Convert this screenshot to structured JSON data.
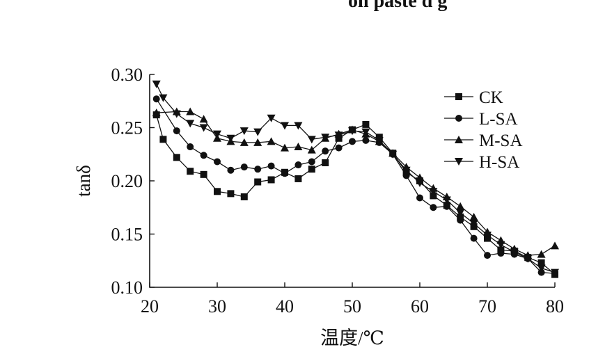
{
  "top_fragment": "on paste d g",
  "chart_data": {
    "type": "line",
    "title": "",
    "xlabel": "温度/℃",
    "ylabel": "tanδ",
    "xlim": [
      20,
      80
    ],
    "ylim": [
      0.1,
      0.3
    ],
    "xticks": [
      20,
      30,
      40,
      50,
      60,
      70,
      80
    ],
    "yticks": [
      0.1,
      0.15,
      0.2,
      0.25,
      0.3
    ],
    "xtick_labels": [
      "20",
      "30",
      "40",
      "50",
      "60",
      "70",
      "80"
    ],
    "ytick_labels": [
      "0.10",
      "0.15",
      "0.20",
      "0.25",
      "0.30"
    ],
    "grid": false,
    "legend_position": "top-right",
    "series": [
      {
        "name": "CK",
        "marker": "square",
        "points": [
          [
            21,
            0.262
          ],
          [
            22,
            0.239
          ],
          [
            24,
            0.222
          ],
          [
            26,
            0.209
          ],
          [
            28,
            0.206
          ],
          [
            30,
            0.19
          ],
          [
            32,
            0.188
          ],
          [
            34,
            0.185
          ],
          [
            36,
            0.199
          ],
          [
            38,
            0.201
          ],
          [
            40,
            0.208
          ],
          [
            42,
            0.202
          ],
          [
            44,
            0.211
          ],
          [
            46,
            0.217
          ],
          [
            48,
            0.24
          ],
          [
            50,
            0.248
          ],
          [
            52,
            0.253
          ],
          [
            54,
            0.241
          ],
          [
            56,
            0.226
          ],
          [
            58,
            0.208
          ],
          [
            60,
            0.2
          ],
          [
            62,
            0.186
          ],
          [
            64,
            0.177
          ],
          [
            66,
            0.166
          ],
          [
            68,
            0.157
          ],
          [
            70,
            0.146
          ],
          [
            72,
            0.135
          ],
          [
            74,
            0.134
          ],
          [
            76,
            0.128
          ],
          [
            78,
            0.123
          ],
          [
            80,
            0.112
          ]
        ]
      },
      {
        "name": "L-SA",
        "marker": "circle",
        "points": [
          [
            21,
            0.277
          ],
          [
            24,
            0.247
          ],
          [
            26,
            0.232
          ],
          [
            28,
            0.224
          ],
          [
            30,
            0.218
          ],
          [
            32,
            0.21
          ],
          [
            34,
            0.213
          ],
          [
            36,
            0.211
          ],
          [
            38,
            0.214
          ],
          [
            40,
            0.207
          ],
          [
            42,
            0.215
          ],
          [
            44,
            0.218
          ],
          [
            46,
            0.228
          ],
          [
            48,
            0.231
          ],
          [
            50,
            0.237
          ],
          [
            52,
            0.238
          ],
          [
            54,
            0.236
          ],
          [
            56,
            0.225
          ],
          [
            58,
            0.205
          ],
          [
            60,
            0.184
          ],
          [
            62,
            0.175
          ],
          [
            64,
            0.176
          ],
          [
            66,
            0.163
          ],
          [
            68,
            0.146
          ],
          [
            70,
            0.13
          ],
          [
            72,
            0.132
          ],
          [
            74,
            0.131
          ],
          [
            76,
            0.127
          ],
          [
            78,
            0.114
          ],
          [
            80,
            0.113
          ]
        ]
      },
      {
        "name": "M-SA",
        "marker": "triangle-up",
        "points": [
          [
            21,
            0.264
          ],
          [
            24,
            0.265
          ],
          [
            26,
            0.265
          ],
          [
            28,
            0.258
          ],
          [
            30,
            0.24
          ],
          [
            32,
            0.237
          ],
          [
            34,
            0.236
          ],
          [
            36,
            0.236
          ],
          [
            38,
            0.237
          ],
          [
            40,
            0.231
          ],
          [
            42,
            0.232
          ],
          [
            44,
            0.229
          ],
          [
            46,
            0.24
          ],
          [
            48,
            0.244
          ],
          [
            50,
            0.248
          ],
          [
            52,
            0.244
          ],
          [
            54,
            0.237
          ],
          [
            56,
            0.226
          ],
          [
            58,
            0.213
          ],
          [
            60,
            0.203
          ],
          [
            62,
            0.193
          ],
          [
            64,
            0.185
          ],
          [
            66,
            0.176
          ],
          [
            68,
            0.166
          ],
          [
            70,
            0.152
          ],
          [
            72,
            0.144
          ],
          [
            74,
            0.136
          ],
          [
            76,
            0.13
          ],
          [
            78,
            0.131
          ],
          [
            80,
            0.139
          ]
        ]
      },
      {
        "name": "H-SA",
        "marker": "triangle-down",
        "points": [
          [
            21,
            0.291
          ],
          [
            22,
            0.278
          ],
          [
            24,
            0.263
          ],
          [
            26,
            0.254
          ],
          [
            28,
            0.25
          ],
          [
            30,
            0.244
          ],
          [
            32,
            0.24
          ],
          [
            34,
            0.247
          ],
          [
            36,
            0.246
          ],
          [
            38,
            0.259
          ],
          [
            40,
            0.252
          ],
          [
            42,
            0.252
          ],
          [
            44,
            0.239
          ],
          [
            46,
            0.241
          ],
          [
            48,
            0.243
          ],
          [
            50,
            0.247
          ],
          [
            52,
            0.246
          ],
          [
            54,
            0.238
          ],
          [
            56,
            0.225
          ],
          [
            58,
            0.21
          ],
          [
            60,
            0.198
          ],
          [
            62,
            0.19
          ],
          [
            64,
            0.182
          ],
          [
            66,
            0.17
          ],
          [
            68,
            0.16
          ],
          [
            70,
            0.149
          ],
          [
            72,
            0.14
          ],
          [
            74,
            0.133
          ],
          [
            76,
            0.127
          ],
          [
            78,
            0.118
          ],
          [
            80,
            0.114
          ]
        ]
      }
    ]
  }
}
